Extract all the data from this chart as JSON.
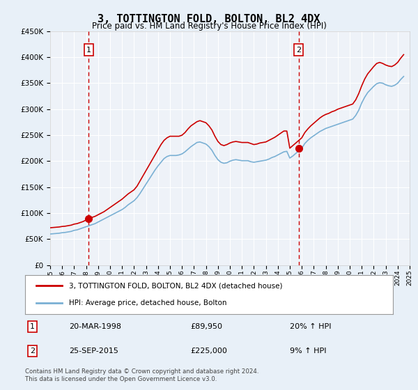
{
  "title": "3, TOTTINGTON FOLD, BOLTON, BL2 4DX",
  "subtitle": "Price paid vs. HM Land Registry's House Price Index (HPI)",
  "legend_label_red": "3, TOTTINGTON FOLD, BOLTON, BL2 4DX (detached house)",
  "legend_label_blue": "HPI: Average price, detached house, Bolton",
  "footnote": "Contains HM Land Registry data © Crown copyright and database right 2024.\nThis data is licensed under the Open Government Licence v3.0.",
  "table_rows": [
    {
      "num": "1",
      "date": "20-MAR-1998",
      "price": "£89,950",
      "pct": "20% ↑ HPI"
    },
    {
      "num": "2",
      "date": "25-SEP-2015",
      "price": "£225,000",
      "pct": "9% ↑ HPI"
    }
  ],
  "sale1_year": 1998.22,
  "sale1_price": 89950,
  "sale2_year": 2015.73,
  "sale2_price": 225000,
  "ylim": [
    0,
    450000
  ],
  "xlim_start": 1995,
  "xlim_end": 2025,
  "bg_color": "#e8f0f8",
  "plot_bg": "#eef2f8",
  "grid_color": "#ffffff",
  "red_line_color": "#cc0000",
  "blue_line_color": "#7ab0d4",
  "sale_dot_color": "#cc0000",
  "vline_color": "#cc0000",
  "box_color": "#cc0000",
  "hpi_red_data": {
    "years": [
      1995.0,
      1995.25,
      1995.5,
      1995.75,
      1996.0,
      1996.25,
      1996.5,
      1996.75,
      1997.0,
      1997.25,
      1997.5,
      1997.75,
      1998.0,
      1998.25,
      1998.5,
      1998.75,
      1999.0,
      1999.25,
      1999.5,
      1999.75,
      2000.0,
      2000.25,
      2000.5,
      2000.75,
      2001.0,
      2001.25,
      2001.5,
      2001.75,
      2002.0,
      2002.25,
      2002.5,
      2002.75,
      2003.0,
      2003.25,
      2003.5,
      2003.75,
      2004.0,
      2004.25,
      2004.5,
      2004.75,
      2005.0,
      2005.25,
      2005.5,
      2005.75,
      2006.0,
      2006.25,
      2006.5,
      2006.75,
      2007.0,
      2007.25,
      2007.5,
      2007.75,
      2008.0,
      2008.25,
      2008.5,
      2008.75,
      2009.0,
      2009.25,
      2009.5,
      2009.75,
      2010.0,
      2010.25,
      2010.5,
      2010.75,
      2011.0,
      2011.25,
      2011.5,
      2011.75,
      2012.0,
      2012.25,
      2012.5,
      2012.75,
      2013.0,
      2013.25,
      2013.5,
      2013.75,
      2014.0,
      2014.25,
      2014.5,
      2014.75,
      2015.0,
      2015.25,
      2015.5,
      2015.75,
      2016.0,
      2016.25,
      2016.5,
      2016.75,
      2017.0,
      2017.25,
      2017.5,
      2017.75,
      2018.0,
      2018.25,
      2018.5,
      2018.75,
      2019.0,
      2019.25,
      2019.5,
      2019.75,
      2020.0,
      2020.25,
      2020.5,
      2020.75,
      2021.0,
      2021.25,
      2021.5,
      2021.75,
      2022.0,
      2022.25,
      2022.5,
      2022.75,
      2023.0,
      2023.25,
      2023.5,
      2023.75,
      2024.0,
      2024.25,
      2024.5
    ],
    "values": [
      72000,
      72500,
      73000,
      73500,
      74500,
      75000,
      76000,
      77000,
      79000,
      80000,
      82000,
      84000,
      87000,
      89950,
      92000,
      94000,
      97000,
      100000,
      103000,
      107000,
      111000,
      115000,
      119000,
      123000,
      127000,
      132000,
      137000,
      141000,
      145000,
      152000,
      162000,
      172000,
      182000,
      192000,
      202000,
      212000,
      222000,
      232000,
      240000,
      245000,
      248000,
      248000,
      248000,
      248000,
      250000,
      255000,
      262000,
      268000,
      272000,
      276000,
      278000,
      276000,
      274000,
      268000,
      260000,
      248000,
      238000,
      232000,
      230000,
      232000,
      235000,
      237000,
      238000,
      237000,
      236000,
      236000,
      236000,
      234000,
      232000,
      233000,
      235000,
      236000,
      237000,
      240000,
      243000,
      246000,
      250000,
      254000,
      258000,
      258000,
      225000,
      230000,
      235000,
      240000,
      245000,
      255000,
      262000,
      268000,
      273000,
      278000,
      283000,
      287000,
      290000,
      292000,
      295000,
      297000,
      300000,
      302000,
      304000,
      306000,
      308000,
      310000,
      318000,
      330000,
      345000,
      358000,
      368000,
      375000,
      382000,
      388000,
      390000,
      388000,
      385000,
      383000,
      382000,
      385000,
      390000,
      398000,
      405000
    ]
  },
  "hpi_blue_data": {
    "years": [
      1995.0,
      1995.25,
      1995.5,
      1995.75,
      1996.0,
      1996.25,
      1996.5,
      1996.75,
      1997.0,
      1997.25,
      1997.5,
      1997.75,
      1998.0,
      1998.25,
      1998.5,
      1998.75,
      1999.0,
      1999.25,
      1999.5,
      1999.75,
      2000.0,
      2000.25,
      2000.5,
      2000.75,
      2001.0,
      2001.25,
      2001.5,
      2001.75,
      2002.0,
      2002.25,
      2002.5,
      2002.75,
      2003.0,
      2003.25,
      2003.5,
      2003.75,
      2004.0,
      2004.25,
      2004.5,
      2004.75,
      2005.0,
      2005.25,
      2005.5,
      2005.75,
      2006.0,
      2006.25,
      2006.5,
      2006.75,
      2007.0,
      2007.25,
      2007.5,
      2007.75,
      2008.0,
      2008.25,
      2008.5,
      2008.75,
      2009.0,
      2009.25,
      2009.5,
      2009.75,
      2010.0,
      2010.25,
      2010.5,
      2010.75,
      2011.0,
      2011.25,
      2011.5,
      2011.75,
      2012.0,
      2012.25,
      2012.5,
      2012.75,
      2013.0,
      2013.25,
      2013.5,
      2013.75,
      2014.0,
      2014.25,
      2014.5,
      2014.75,
      2015.0,
      2015.25,
      2015.5,
      2015.75,
      2016.0,
      2016.25,
      2016.5,
      2016.75,
      2017.0,
      2017.25,
      2017.5,
      2017.75,
      2018.0,
      2018.25,
      2018.5,
      2018.75,
      2019.0,
      2019.25,
      2019.5,
      2019.75,
      2020.0,
      2020.25,
      2020.5,
      2020.75,
      2021.0,
      2021.25,
      2021.5,
      2021.75,
      2022.0,
      2022.25,
      2022.5,
      2022.75,
      2023.0,
      2023.25,
      2023.5,
      2023.75,
      2024.0,
      2024.25,
      2024.5
    ],
    "values": [
      60000,
      60500,
      61000,
      61500,
      62500,
      63000,
      64000,
      65000,
      67000,
      68000,
      70000,
      72000,
      74000,
      76000,
      78000,
      80000,
      83000,
      86000,
      89000,
      92000,
      95000,
      98000,
      101000,
      104000,
      107000,
      111000,
      116000,
      120000,
      124000,
      130000,
      138000,
      147000,
      156000,
      165000,
      174000,
      183000,
      191000,
      198000,
      205000,
      209000,
      211000,
      211000,
      211000,
      212000,
      214000,
      218000,
      223000,
      228000,
      232000,
      236000,
      237000,
      235000,
      233000,
      228000,
      221000,
      211000,
      203000,
      198000,
      196000,
      197000,
      200000,
      202000,
      203000,
      202000,
      201000,
      201000,
      201000,
      199000,
      198000,
      199000,
      200000,
      201000,
      202000,
      204000,
      207000,
      209000,
      212000,
      215000,
      218000,
      219000,
      206000,
      210000,
      215000,
      220000,
      225000,
      234000,
      240000,
      245000,
      249000,
      253000,
      257000,
      260000,
      263000,
      265000,
      267000,
      269000,
      271000,
      273000,
      275000,
      277000,
      279000,
      281000,
      288000,
      298000,
      312000,
      323000,
      332000,
      338000,
      344000,
      349000,
      351000,
      350000,
      347000,
      345000,
      344000,
      346000,
      350000,
      357000,
      363000
    ]
  }
}
